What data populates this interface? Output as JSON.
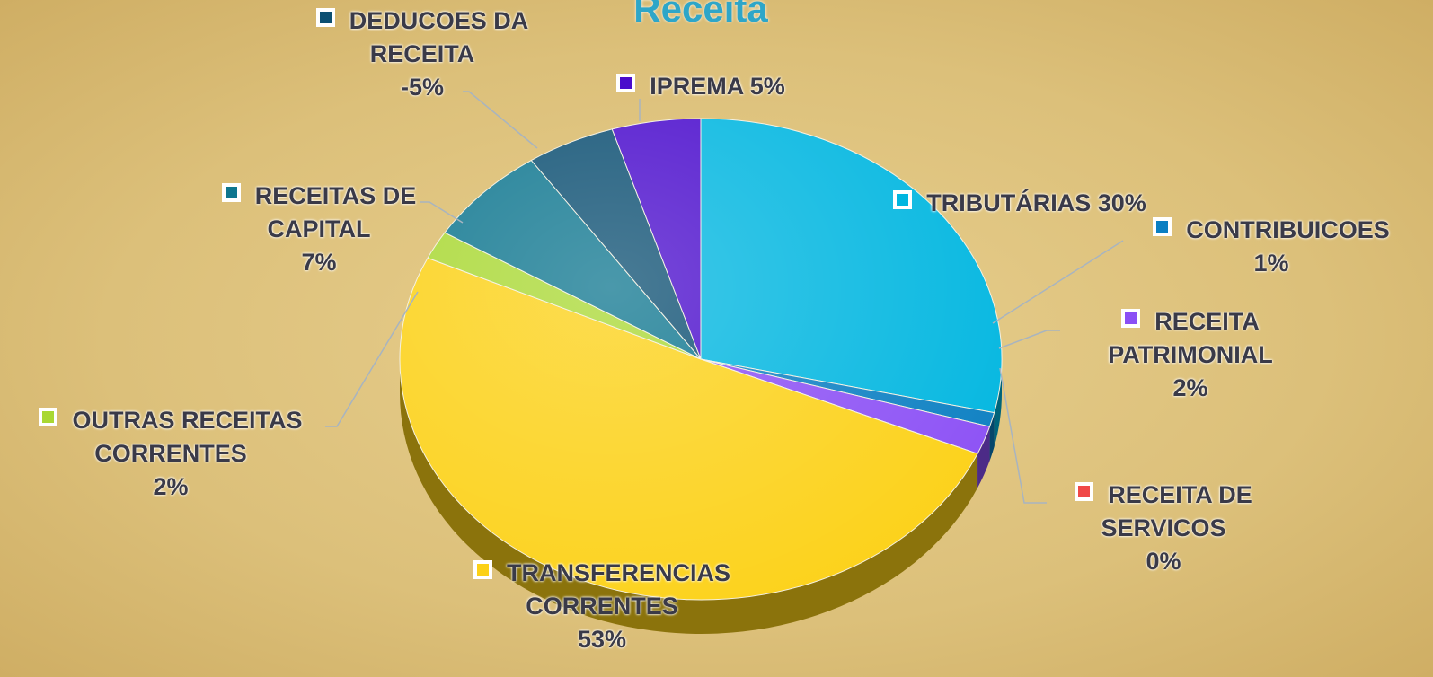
{
  "chart_data": {
    "type": "pie",
    "title": "Receita",
    "categories": [
      "TRIBUTÁRIAS",
      "CONTRIBUICOES",
      "RECEITA PATRIMONIAL",
      "RECEITA DE SERVICOS",
      "TRANSFERENCIAS CORRENTES",
      "OUTRAS RECEITAS CORRENTES",
      "RECEITAS DE CAPITAL",
      "DEDUCOES DA RECEITA",
      "IPREMA"
    ],
    "values": [
      30,
      1,
      2,
      0,
      53,
      2,
      7,
      -5,
      5
    ],
    "value_labels": [
      "30%",
      "1%",
      "2%",
      "0%",
      "53%",
      "2%",
      "7%",
      "-5%",
      "5%"
    ],
    "colors": [
      "#00b6e0",
      "#0b7fc2",
      "#8b4ff5",
      "#f04848",
      "#fcd116",
      "#a9d833",
      "#0e768f",
      "#0c4f72",
      "#4a0ccc"
    ]
  }
}
